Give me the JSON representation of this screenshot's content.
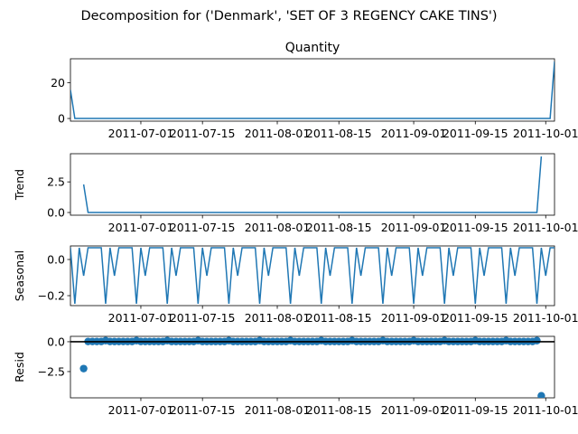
{
  "suptitle": "Decomposition for ('Denmark', 'SET OF 3 REGENCY CAKE TINS')",
  "chart_data": [
    {
      "type": "line",
      "title": "Quantity",
      "ylabel": "",
      "xlim": [
        "2011-06-15",
        "2011-10-03"
      ],
      "ylim": [
        -1.5,
        33.5
      ],
      "yticks": [
        0,
        20
      ],
      "ytick_labels": [
        "0",
        "20"
      ],
      "series": [
        {
          "x": [
            "2011-06-15",
            "2011-06-16",
            "2011-10-02",
            "2011-10-03"
          ],
          "y": [
            16,
            0,
            0,
            32
          ]
        }
      ]
    },
    {
      "type": "line",
      "title": "",
      "ylabel": "Trend",
      "xlim": [
        "2011-06-15",
        "2011-10-03"
      ],
      "ylim": [
        -0.22,
        4.8
      ],
      "yticks": [
        0,
        2.5
      ],
      "ytick_labels": [
        "0.0",
        "2.5"
      ],
      "series": [
        {
          "x": [
            "2011-06-18",
            "2011-06-19",
            "2011-09-29",
            "2011-09-30"
          ],
          "y": [
            2.29,
            0,
            0,
            4.57
          ]
        }
      ]
    },
    {
      "type": "line",
      "title": "",
      "ylabel": "Seasonal",
      "xlim": [
        "2011-06-15",
        "2011-10-03"
      ],
      "ylim": [
        -0.255,
        0.075
      ],
      "yticks": [
        0,
        -0.2
      ],
      "ytick_labels": [
        "0.0",
        "−0.2"
      ],
      "period": 7,
      "weekly_pattern": [
        0.065,
        -0.245,
        0.065,
        -0.09,
        0.065,
        0.065,
        0.065
      ],
      "pattern_start": "2011-06-15"
    },
    {
      "type": "scatter",
      "title": "",
      "ylabel": "Resid",
      "xlim": [
        "2011-06-15",
        "2011-10-03"
      ],
      "ylim": [
        -4.7,
        0.45
      ],
      "yticks": [
        0,
        -2.5
      ],
      "ytick_labels": [
        "0.0",
        "−2.5"
      ],
      "baseline": 0,
      "start": "2011-06-18",
      "end": "2011-09-30",
      "outliers": [
        {
          "x": "2011-06-18",
          "y": -2.25
        },
        {
          "x": "2011-09-30",
          "y": -4.53
        }
      ],
      "pattern": [
        0.02,
        0.02,
        0.02,
        0.02,
        0.02,
        0.09,
        0.02
      ]
    }
  ],
  "xticks": [
    "2011-07-01",
    "2011-07-15",
    "2011-08-01",
    "2011-08-15",
    "2011-09-01",
    "2011-09-15",
    "2011-10-01"
  ],
  "colors": {
    "line": "#1f77b4",
    "baseline": "#000000"
  }
}
